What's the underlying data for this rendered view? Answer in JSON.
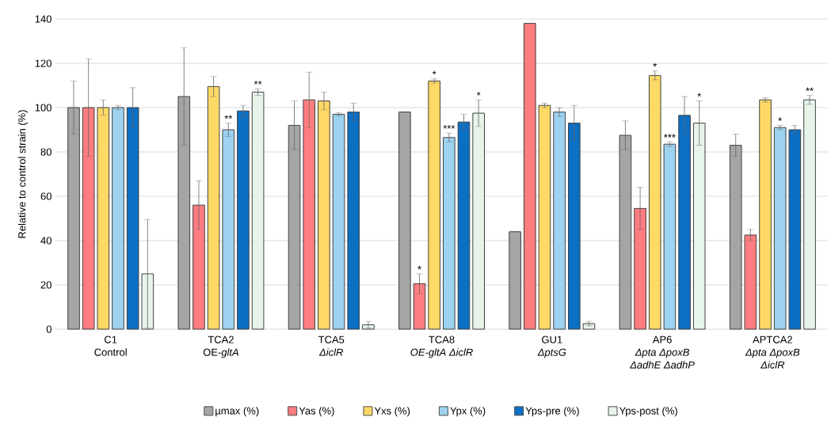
{
  "chart_data": {
    "type": "bar",
    "categories": [
      "C1\nControl",
      "TCA2\nOE-*gltA*",
      "TCA5\n*ΔiclR*",
      "TCA8\n*OE-gltA ΔiclR*",
      "GU1\n*ΔptsG*",
      "AP6\n*Δpta ΔpoxB*\n*ΔadhE ΔadhP*",
      "APTCA2\n*Δpta ΔpoxB*\n*ΔiclR*"
    ],
    "ylabel": "Relative to control strain (%)",
    "ylim": [
      0,
      140
    ],
    "yticks": [
      0,
      20,
      40,
      60,
      80,
      100,
      120,
      140
    ],
    "grid": "y",
    "legend": "bottom",
    "series": [
      {
        "name": "µmax (%)",
        "color": "#a5a5a5",
        "values": [
          100,
          105,
          92,
          98,
          44,
          87.5,
          83
        ],
        "errors": [
          12,
          22,
          11,
          null,
          null,
          6.5,
          5
        ],
        "value_labels": [
          null,
          null,
          null,
          null,
          null,
          null,
          null
        ]
      },
      {
        "name": "Yas (%)",
        "color": "#ff7c80",
        "values": [
          100,
          56,
          103.5,
          20.5,
          138,
          54.5,
          42.5
        ],
        "errors": [
          22,
          11,
          12.5,
          4.5,
          null,
          9.5,
          2.5
        ],
        "value_labels": [
          null,
          null,
          null,
          "*",
          null,
          null,
          null
        ]
      },
      {
        "name": "Yxs (%)",
        "color": "#ffd966",
        "values": [
          100,
          109.5,
          103,
          112,
          101,
          114.5,
          103.5
        ],
        "errors": [
          3.5,
          4.5,
          4,
          1,
          1,
          2,
          1
        ],
        "value_labels": [
          null,
          null,
          null,
          "*",
          null,
          "*",
          null
        ]
      },
      {
        "name": "Ypx (%)",
        "color": "#9dd3f0",
        "values": [
          100,
          90,
          97,
          86.5,
          98,
          83.5,
          91
        ],
        "errors": [
          1,
          3,
          0.7,
          2,
          2,
          1,
          1
        ],
        "value_labels": [
          null,
          "**",
          null,
          "***",
          null,
          "***",
          "*"
        ]
      },
      {
        "name": "Yps-pre (%)",
        "color": "#0b6fc4",
        "values": [
          100,
          98.5,
          98,
          93.5,
          93,
          96.5,
          90
        ],
        "errors": [
          9,
          2.5,
          4,
          3.5,
          8,
          8.5,
          2
        ],
        "value_labels": [
          null,
          null,
          null,
          null,
          null,
          null,
          null
        ]
      },
      {
        "name": "Yps-post (%)",
        "color": "#e6f4ea",
        "values": [
          25,
          107,
          2,
          97.5,
          2.5,
          93,
          103.5
        ],
        "errors": [
          24.5,
          1.5,
          1.5,
          6,
          1,
          10,
          2
        ],
        "value_labels": [
          null,
          "**",
          null,
          "*",
          null,
          "*",
          "**"
        ]
      }
    ]
  }
}
